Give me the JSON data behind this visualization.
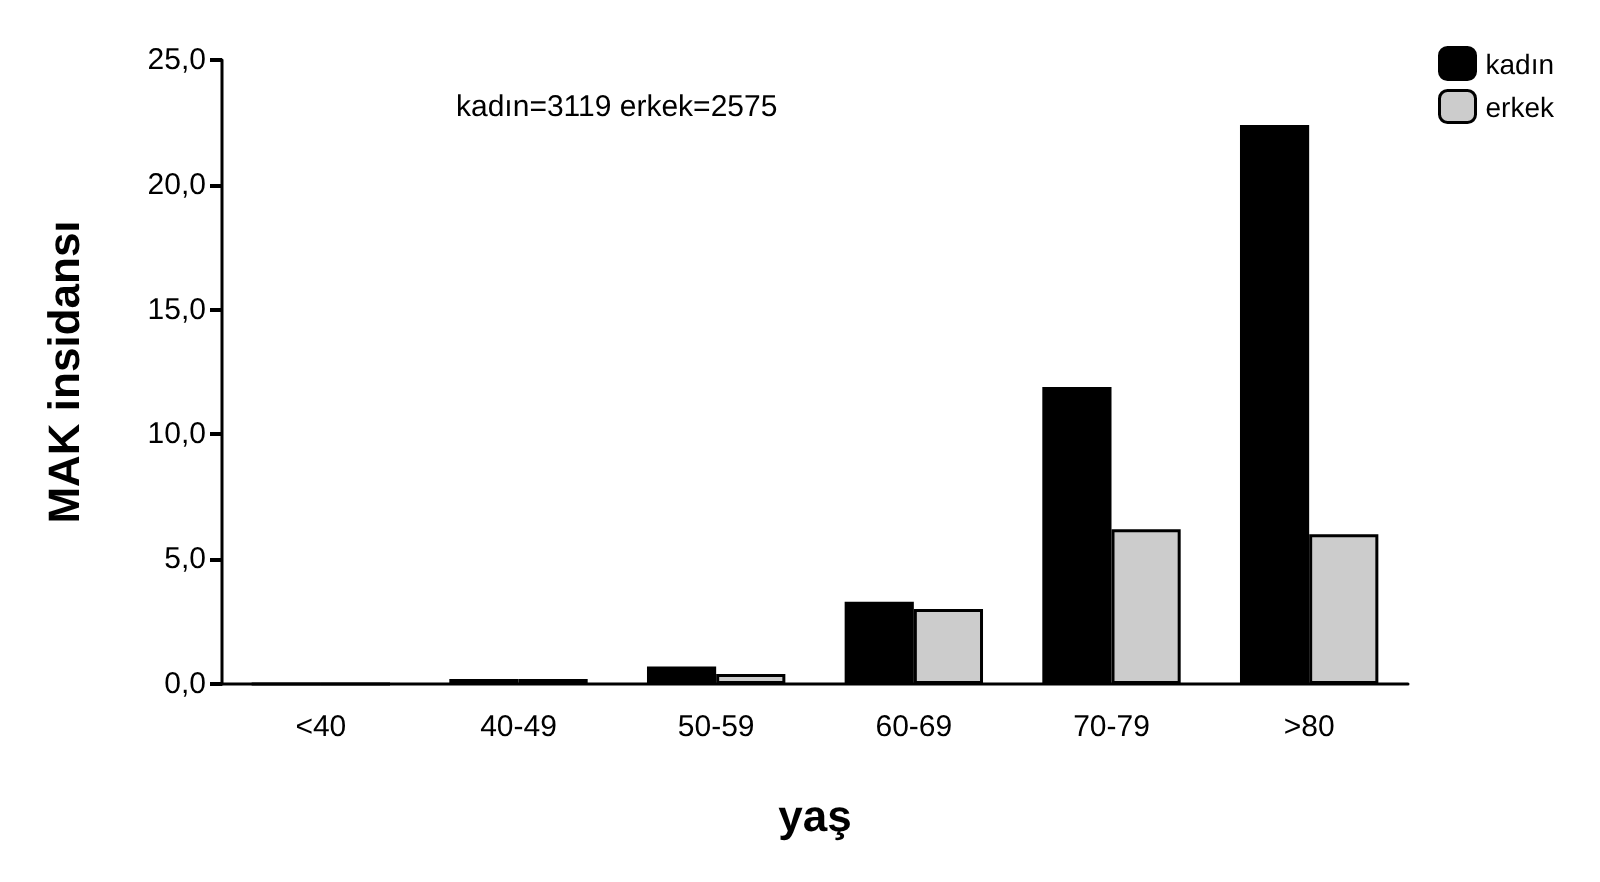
{
  "chart_data": {
    "type": "bar",
    "xlabel": "yaş",
    "ylabel": "MAK insidansı",
    "categories": [
      "<40",
      "40-49",
      "50-59",
      "60-69",
      "70-79",
      ">80"
    ],
    "series": [
      {
        "name": "kadın",
        "color": "#000000",
        "values": [
          0,
          0.2,
          0.7,
          3.3,
          11.9,
          22.4
        ]
      },
      {
        "name": "erkek",
        "color": "#cccccc",
        "values": [
          0,
          0.2,
          0.4,
          3.0,
          6.2,
          6.0
        ]
      }
    ],
    "ylim": [
      0,
      25
    ],
    "yticks": [
      {
        "value": 0,
        "label": "0,0"
      },
      {
        "value": 5,
        "label": "5,0"
      },
      {
        "value": 10,
        "label": "10,0"
      },
      {
        "value": 15,
        "label": "15,0"
      },
      {
        "value": 20,
        "label": "20,0"
      },
      {
        "value": 25,
        "label": "25,0"
      }
    ],
    "annotations": [
      "kadın=3119 erkek=2575"
    ],
    "legend": "top right",
    "grid": false
  }
}
